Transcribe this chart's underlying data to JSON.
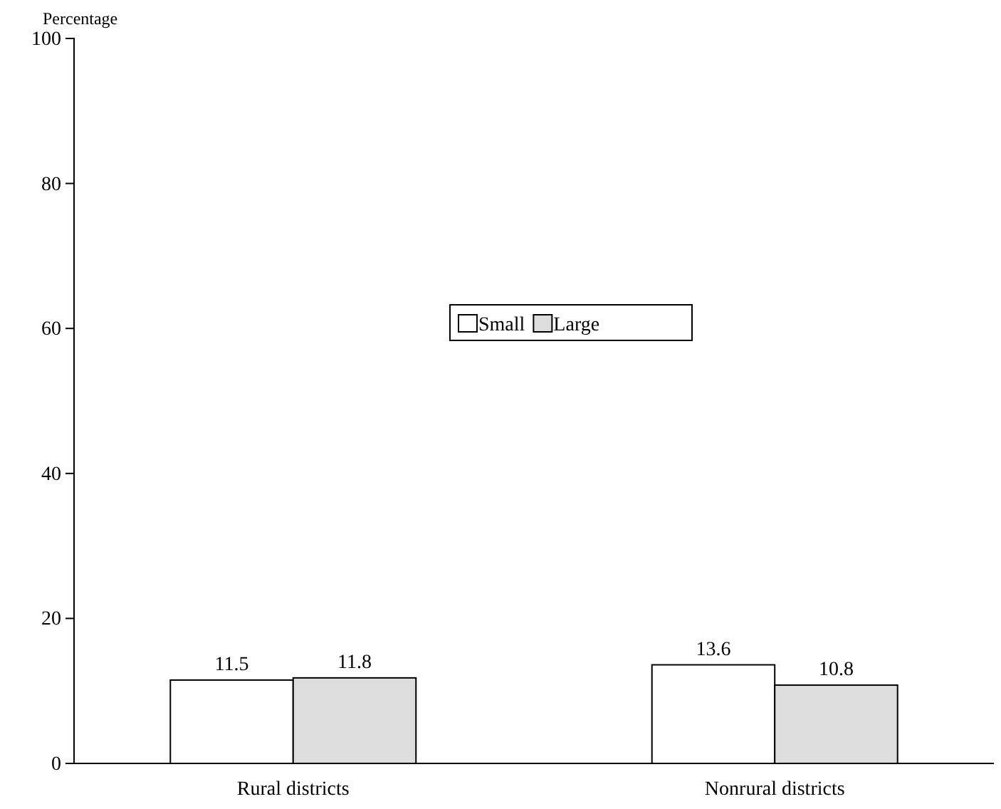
{
  "chart_data": {
    "type": "bar",
    "ylabel": "Percentage",
    "categories": [
      "Rural districts",
      "Nonrural districts"
    ],
    "series": [
      {
        "name": "Small",
        "color": "#ffffff",
        "values": [
          11.5,
          13.6
        ]
      },
      {
        "name": "Large",
        "color": "#dddddd",
        "values": [
          11.8,
          10.8
        ]
      }
    ],
    "ylim": [
      0,
      100
    ],
    "yticks": [
      0,
      20,
      40,
      60,
      80,
      100
    ],
    "data_labels": true,
    "legend": "center",
    "grid": false
  }
}
